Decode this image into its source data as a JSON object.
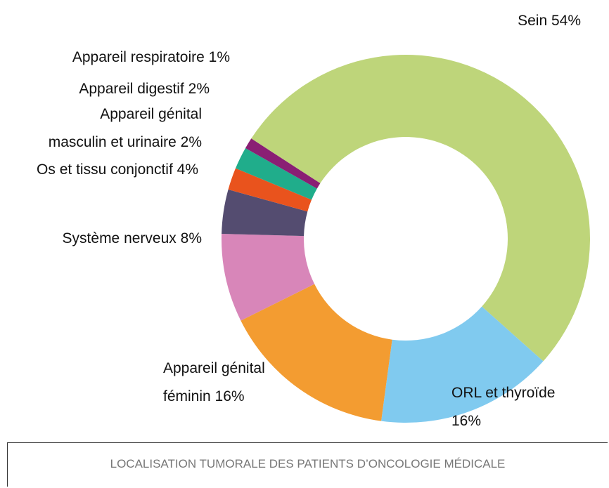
{
  "chart_data": {
    "type": "donut",
    "title": "LOCALISATION TUMORALE DES PATIENTS D’ONCOLOGIE MÉDICALE",
    "categories": [
      "Sein",
      "ORL et thyroïde",
      "Appareil génital féminin",
      "Système nerveux",
      "Os et tissu conjonctif",
      "Appareil génital masculin et urinaire",
      "Appareil digestif",
      "Appareil respiratoire"
    ],
    "values": [
      54,
      16,
      16,
      8,
      4,
      2,
      2,
      1
    ],
    "value_labels": [
      "54%",
      "16%",
      "16%",
      "8%",
      "4%",
      "2%",
      "2%",
      "1%"
    ],
    "colors": [
      "#bed57a",
      "#80caef",
      "#f39c31",
      "#d886b9",
      "#544c70",
      "#e9531d",
      "#20ad8b",
      "#8a1f74"
    ]
  }
}
